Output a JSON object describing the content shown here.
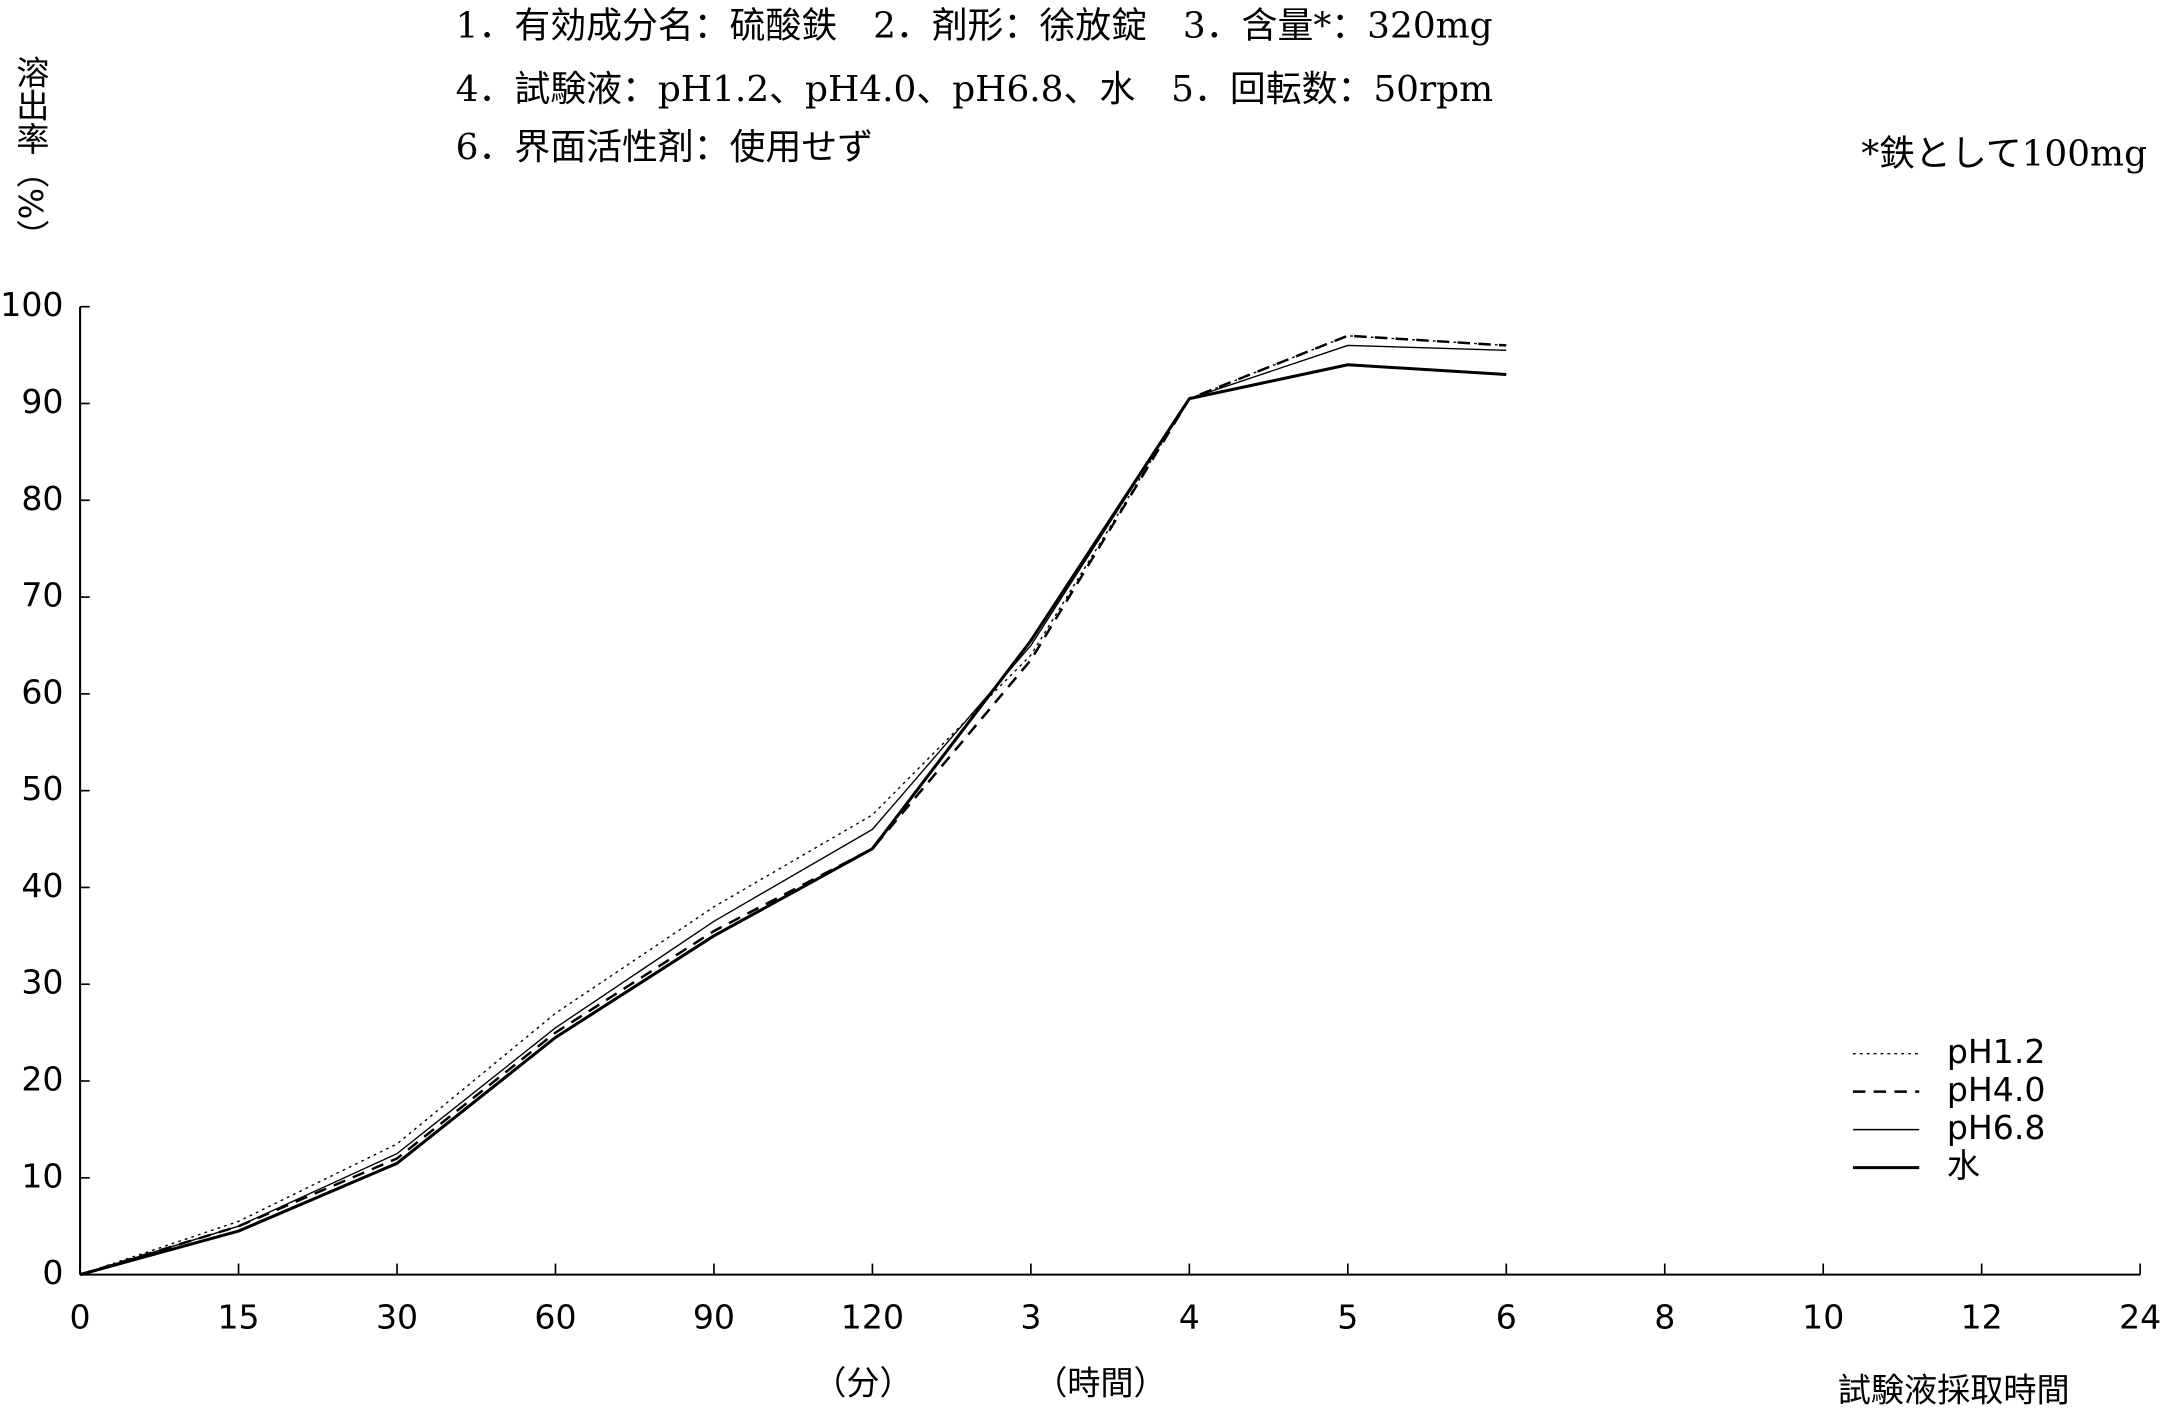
{
  "chart_data": {
    "type": "line",
    "header_lines": [
      "1．有効成分名：硫酸鉄　2．剤形：徐放錠　3．含量*：320mg",
      "4．試験液：pH1.2、pH4.0、pH6.8、水　5．回転数：50rpm",
      "6．界面活性剤：使用せず"
    ],
    "note": "*鉄として100mg",
    "y_label": "溶出率（%）",
    "x_unit_labels": [
      "（分）",
      "（時間）"
    ],
    "x_label": "試験液採取時間",
    "categories": [
      "0",
      "15",
      "30",
      "60",
      "90",
      "120",
      "3",
      "4",
      "5",
      "6",
      "8",
      "10",
      "12",
      "24"
    ],
    "series": [
      {
        "name": "pH1.2",
        "color": "#000000",
        "dash": "dotted",
        "values": [
          0,
          5.5,
          13.5,
          27,
          38,
          47.5,
          64,
          90.5,
          97,
          96,
          null,
          null,
          null,
          null
        ]
      },
      {
        "name": "pH4.0",
        "color": "#000000",
        "dash": "dashed",
        "values": [
          0,
          5,
          12,
          25,
          35.5,
          44,
          63.5,
          90.5,
          97,
          96,
          null,
          null,
          null,
          null
        ]
      },
      {
        "name": "pH6.8",
        "color": "#000000",
        "dash": "thin",
        "values": [
          0,
          5,
          12.5,
          25.5,
          36.5,
          46,
          65,
          90.5,
          96,
          95.5,
          null,
          null,
          null,
          null
        ]
      },
      {
        "name": "水",
        "color": "#000000",
        "dash": "thick",
        "values": [
          0,
          4.5,
          11.5,
          24.5,
          35,
          44,
          65.5,
          90.5,
          94,
          93,
          null,
          null,
          null,
          null
        ]
      }
    ],
    "ylim": [
      0,
      100
    ],
    "yticks": [
      0,
      10,
      20,
      30,
      40,
      50,
      60,
      70,
      80,
      90,
      100
    ],
    "legend": "lower right"
  }
}
